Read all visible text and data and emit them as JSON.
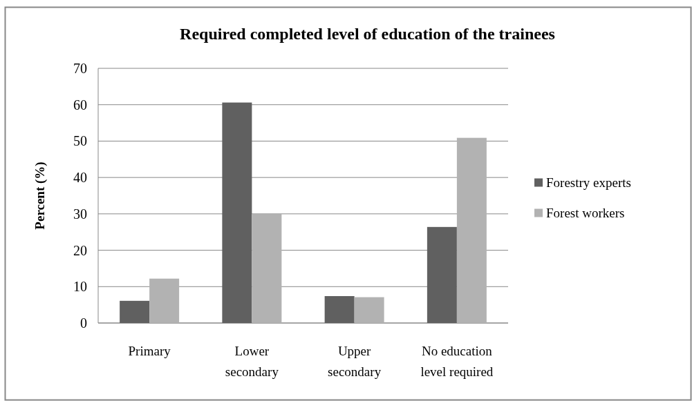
{
  "chart_data": {
    "type": "bar",
    "title": "Required completed level of education of the trainees",
    "ylabel": "Percent (%)",
    "categories": [
      "Primary",
      "Lower secondary",
      "Upper secondary",
      "No education level required"
    ],
    "series": [
      {
        "name": "Forestry experts",
        "color": "#606060",
        "values": [
          6.1,
          60.6,
          7.4,
          26.4
        ]
      },
      {
        "name": "Forest workers",
        "color": "#b2b2b2",
        "values": [
          12.2,
          30.0,
          7.1,
          50.9
        ]
      }
    ],
    "ylim": [
      0,
      70
    ],
    "yticks": [
      0,
      10,
      20,
      30,
      40,
      50,
      60,
      70
    ],
    "grid": "y",
    "legend": "right"
  }
}
